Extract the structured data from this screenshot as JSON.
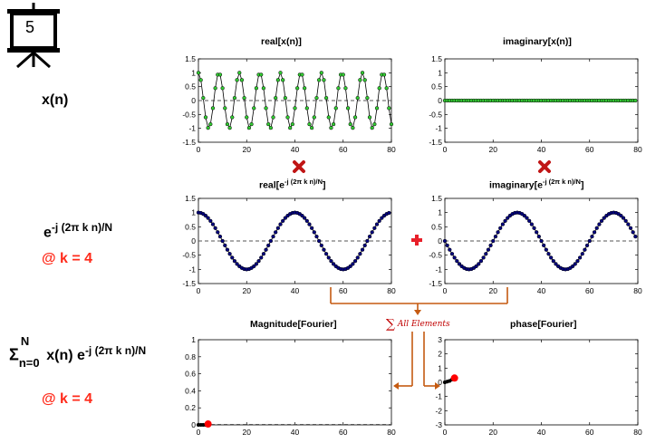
{
  "slide_number": "5",
  "row_labels": {
    "xn": "x(n)",
    "kernel_base": "e",
    "kernel_exp": "-j (2π k n)/N",
    "k_note_1": "@ k = 4",
    "sum_sigma": "Σ",
    "sum_upper": "N",
    "sum_lower": "n=0",
    "sum_body_a": " x(n) e",
    "sum_body_exp": "-j (2π k n)/N",
    "k_note_2": "@ k = 4"
  },
  "titles": {
    "p1": "real[x(n)]",
    "p2": "imaginary[x(n)]",
    "p3_a": "real[e",
    "p3_exp": "-j (2π k n)/N",
    "p3_b": "]",
    "p4_a": "imaginary[e",
    "p4_exp": "-j (2π k n)/N",
    "p4_b": "]",
    "p5": "Magnitude[Fourier]",
    "p6": "phase[Fourier]"
  },
  "sum_label": "All Elements",
  "sum_symbol": "∑",
  "colors": {
    "green": "#33cc33",
    "navy": "#000080",
    "red_marker": "#ff0000",
    "operator_red": "#e8202a",
    "arrow_orange": "#c55a11",
    "label_red": "#ff2a1a"
  },
  "icons": [
    "presentation-board-icon",
    "multiply-icon",
    "plus-icon"
  ],
  "chart_data": [
    {
      "id": "p1",
      "type": "line",
      "marker": "circle",
      "color": "#33cc33",
      "title": "real[x(n)]",
      "xlim": [
        0,
        80
      ],
      "ylim": [
        -1.5,
        1.5
      ],
      "xticks": [
        0,
        20,
        40,
        60,
        80
      ],
      "yticks": [
        1.5,
        1,
        0.5,
        0,
        -0.5,
        -1,
        -1.5
      ],
      "yticklabels": [
        "1.5",
        "1",
        "0.5",
        "0",
        "-0.5",
        "-1",
        "-1.5"
      ],
      "zero_line": true,
      "y": [
        1,
        0.739,
        0.093,
        -0.603,
        -0.983,
        -0.851,
        -0.274,
        0.446,
        0.932,
        0.932,
        0.446,
        -0.274,
        -0.851,
        -0.983,
        -0.603,
        0.093,
        0.739,
        1,
        0.739,
        0.093,
        -0.603,
        -0.983,
        -0.851,
        -0.274,
        0.446,
        0.932,
        0.932,
        0.446,
        -0.274,
        -0.851,
        -0.983,
        -0.603,
        0.093,
        0.739,
        1,
        0.739,
        0.093,
        -0.603,
        -0.983,
        -0.851,
        -0.274,
        0.446,
        0.932,
        0.932,
        0.446,
        -0.274,
        -0.851,
        -0.983,
        -0.603,
        0.093,
        0.739,
        1,
        0.739,
        0.093,
        -0.603,
        -0.983,
        -0.851,
        -0.274,
        0.446,
        0.932,
        0.932,
        0.446,
        -0.274,
        -0.851,
        -0.983,
        -0.603,
        0.093,
        0.739,
        1,
        0.739,
        0.093,
        -0.603,
        -0.983,
        -0.851,
        -0.274,
        0.446,
        0.932,
        0.932,
        0.446,
        -0.274,
        -0.851
      ]
    },
    {
      "id": "p2",
      "type": "line",
      "marker": "circle",
      "color": "#33cc33",
      "title": "imaginary[x(n)]",
      "xlim": [
        0,
        80
      ],
      "ylim": [
        -1.5,
        1.5
      ],
      "xticks": [
        0,
        20,
        40,
        60,
        80
      ],
      "yticks": [
        1.5,
        1,
        0.5,
        0,
        -0.5,
        -1,
        -1.5
      ],
      "yticklabels": [
        "1.5",
        "1",
        "0.5",
        "0",
        "-0.5",
        "-1",
        "-1.5"
      ],
      "zero_line": true,
      "y": [
        0,
        0,
        0,
        0,
        0,
        0,
        0,
        0,
        0,
        0,
        0,
        0,
        0,
        0,
        0,
        0,
        0,
        0,
        0,
        0,
        0,
        0,
        0,
        0,
        0,
        0,
        0,
        0,
        0,
        0,
        0,
        0,
        0,
        0,
        0,
        0,
        0,
        0,
        0,
        0,
        0,
        0,
        0,
        0,
        0,
        0,
        0,
        0,
        0,
        0,
        0,
        0,
        0,
        0,
        0,
        0,
        0,
        0,
        0,
        0,
        0,
        0,
        0,
        0,
        0,
        0,
        0,
        0,
        0,
        0,
        0,
        0,
        0,
        0,
        0,
        0,
        0,
        0,
        0,
        0
      ]
    },
    {
      "id": "p3",
      "type": "line",
      "marker": "circle",
      "color": "#000080",
      "title": "real[e^-j (2π k n)/N]",
      "xlim": [
        0,
        80
      ],
      "ylim": [
        -1.5,
        1.5
      ],
      "xticks": [
        0,
        20,
        40,
        60,
        80
      ],
      "yticks": [
        1.5,
        1,
        0.5,
        0,
        -0.5,
        -1,
        -1.5
      ],
      "yticklabels": [
        "1.5",
        "1",
        "0.5",
        "0",
        "-0.5",
        "-1",
        "-1.5"
      ],
      "zero_line": true,
      "y": [
        1,
        0.988,
        0.951,
        0.891,
        0.809,
        0.707,
        0.588,
        0.454,
        0.309,
        0.156,
        0,
        -0.156,
        -0.309,
        -0.454,
        -0.588,
        -0.707,
        -0.809,
        -0.891,
        -0.951,
        -0.988,
        -1,
        -0.988,
        -0.951,
        -0.891,
        -0.809,
        -0.707,
        -0.588,
        -0.454,
        -0.309,
        -0.156,
        0,
        0.156,
        0.309,
        0.454,
        0.588,
        0.707,
        0.809,
        0.891,
        0.951,
        0.988,
        1,
        0.988,
        0.951,
        0.891,
        0.809,
        0.707,
        0.588,
        0.454,
        0.309,
        0.156,
        0,
        -0.156,
        -0.309,
        -0.454,
        -0.588,
        -0.707,
        -0.809,
        -0.891,
        -0.951,
        -0.988,
        -1,
        -0.988,
        -0.951,
        -0.891,
        -0.809,
        -0.707,
        -0.588,
        -0.454,
        -0.309,
        -0.156,
        0,
        0.156,
        0.309,
        0.454,
        0.588,
        0.707,
        0.809,
        0.891,
        0.951,
        0.988
      ]
    },
    {
      "id": "p4",
      "type": "line",
      "marker": "circle",
      "color": "#000080",
      "title": "imaginary[e^-j (2π k n)/N]",
      "xlim": [
        0,
        80
      ],
      "ylim": [
        -1.5,
        1.5
      ],
      "xticks": [
        0,
        20,
        40,
        60,
        80
      ],
      "yticks": [
        1.5,
        1,
        0.5,
        0,
        -0.5,
        -1,
        -1.5
      ],
      "yticklabels": [
        "1.5",
        "1",
        "0.5",
        "0",
        "-0.5",
        "-1",
        "-1.5"
      ],
      "zero_line": true,
      "y": [
        0,
        -0.156,
        -0.309,
        -0.454,
        -0.588,
        -0.707,
        -0.809,
        -0.891,
        -0.951,
        -0.988,
        -1,
        -0.988,
        -0.951,
        -0.891,
        -0.809,
        -0.707,
        -0.588,
        -0.454,
        -0.309,
        -0.156,
        0,
        0.156,
        0.309,
        0.454,
        0.588,
        0.707,
        0.809,
        0.891,
        0.951,
        0.988,
        1,
        0.988,
        0.951,
        0.891,
        0.809,
        0.707,
        0.588,
        0.454,
        0.309,
        0.156,
        0,
        -0.156,
        -0.309,
        -0.454,
        -0.588,
        -0.707,
        -0.809,
        -0.891,
        -0.951,
        -0.988,
        -1,
        -0.988,
        -0.951,
        -0.891,
        -0.809,
        -0.707,
        -0.588,
        -0.454,
        -0.309,
        -0.156,
        0,
        0.156,
        0.309,
        0.454,
        0.588,
        0.707,
        0.809,
        0.891,
        0.951,
        0.988,
        1,
        0.988,
        0.951,
        0.891,
        0.809,
        0.707,
        0.588,
        0.454,
        0.309,
        0.156
      ]
    },
    {
      "id": "p5",
      "type": "line",
      "marker": "circle",
      "color": "#000000",
      "title": "Magnitude[Fourier]",
      "xlim": [
        0,
        80
      ],
      "ylim": [
        0,
        1
      ],
      "xticks": [
        0,
        20,
        40,
        60,
        80
      ],
      "yticks": [
        1,
        0.8,
        0.6,
        0.4,
        0.2,
        0
      ],
      "yticklabels": [
        "1",
        "0.8",
        "0.6",
        "0.4",
        "0.2",
        "0"
      ],
      "zero_line": false,
      "x": [
        0,
        1,
        2,
        3,
        4
      ],
      "y": [
        0,
        0,
        0,
        0,
        0
      ],
      "baseline_dashed": true,
      "highlight": {
        "x": 4,
        "y": 0.01,
        "color": "#ff0000"
      }
    },
    {
      "id": "p6",
      "type": "line",
      "marker": "circle",
      "color": "#000000",
      "title": "phase[Fourier]",
      "xlim": [
        0,
        80
      ],
      "ylim": [
        -3,
        3
      ],
      "xticks": [
        0,
        20,
        40,
        60,
        80
      ],
      "yticks": [
        3,
        2,
        1,
        0,
        -1,
        -2,
        -3
      ],
      "yticklabels": [
        "3",
        "2",
        "1",
        "0",
        "-1",
        "-2",
        "-3"
      ],
      "zero_line": false,
      "x": [
        0,
        1,
        2,
        3,
        4
      ],
      "y": [
        0,
        0.05,
        0.1,
        0.2,
        0.3
      ],
      "highlight": {
        "x": 4,
        "y": 0.3,
        "color": "#ff0000"
      }
    }
  ]
}
